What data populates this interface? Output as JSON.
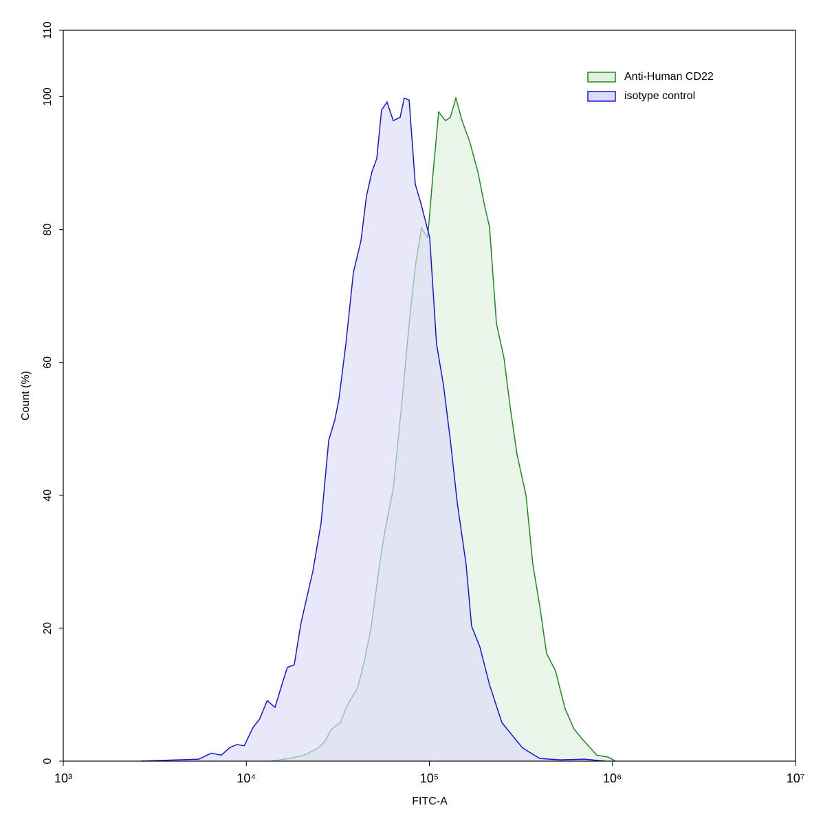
{
  "chart_data": {
    "type": "histogram-overlay",
    "x_label": "FITC-A",
    "y_label": "Count  (%)",
    "xscale": "log",
    "xlim": [
      1000,
      10000000
    ],
    "xticks": [
      {
        "value": 1000,
        "label": "10³"
      },
      {
        "value": 10000,
        "label": "10⁴"
      },
      {
        "value": 100000,
        "label": "10⁵"
      },
      {
        "value": 1000000,
        "label": "10⁶"
      },
      {
        "value": 10000000,
        "label": "10⁷"
      }
    ],
    "ylim": [
      0,
      110
    ],
    "yticks": [
      0,
      20,
      40,
      60,
      80,
      100,
      110
    ],
    "legend": "upper right",
    "series": [
      {
        "name": "Anti-Human CD22",
        "color": "#1a8a1a",
        "fill": "#dff0df",
        "x": [
          13740,
          17060,
          20280,
          22130,
          24540,
          26740,
          29160,
          32640,
          35570,
          40530,
          44190,
          48170,
          53430,
          57270,
          63500,
          71070,
          78830,
          84560,
          90570,
          97900,
          104900,
          112400,
          122500,
          130200,
          139600,
          150800,
          165800,
          184100,
          200600,
          213100,
          232400,
          255500,
          276000,
          301000,
          337200,
          367600,
          400500,
          436700,
          488500,
          551300,
          617400,
          690400,
          821600,
          951000,
          1038000
        ],
        "values": [
          0,
          0.4,
          0.8,
          1.3,
          1.9,
          2.9,
          4.8,
          5.8,
          8.4,
          11.0,
          15.1,
          20.3,
          29.6,
          34.8,
          41.0,
          54.5,
          67.9,
          75.2,
          80.2,
          78.8,
          88.7,
          97.7,
          96.4,
          96.9,
          99.8,
          96.4,
          93.3,
          88.7,
          83.5,
          80.4,
          65.9,
          60.7,
          53.4,
          46.2,
          40.0,
          29.6,
          23.4,
          16.2,
          13.6,
          7.9,
          4.8,
          3.2,
          0.9,
          0.6,
          0
        ]
      },
      {
        "name": "isotype control",
        "color": "#1414dc",
        "fill": "#dcdcf8",
        "x": [
          2660,
          4270,
          5500,
          6440,
          7300,
          8180,
          8920,
          9730,
          10900,
          11800,
          13000,
          14350,
          15640,
          16750,
          18270,
          19900,
          23100,
          25600,
          28200,
          30470,
          32070,
          34970,
          38470,
          42300,
          45290,
          48550,
          51600,
          54800,
          58700,
          63500,
          69200,
          72900,
          77500,
          83800,
          89800,
          100400,
          109400,
          119400,
          130200,
          142000,
          158700,
          170100,
          188700,
          213100,
          248900,
          283300,
          322500,
          400500,
          519800,
          703500,
          912000
        ],
        "values": [
          0,
          0.2,
          0.3,
          1.2,
          0.9,
          2.1,
          2.5,
          2.3,
          5.1,
          6.3,
          9.1,
          8.1,
          11.5,
          14.1,
          14.5,
          20.8,
          28.6,
          35.8,
          48.3,
          51.4,
          54.5,
          62.8,
          73.6,
          78.3,
          85.0,
          88.7,
          90.7,
          98.0,
          99.2,
          96.4,
          96.9,
          99.8,
          99.5,
          86.8,
          84.0,
          78.8,
          62.8,
          56.6,
          48.3,
          38.9,
          29.6,
          20.3,
          17.2,
          11.5,
          5.8,
          3.9,
          2.0,
          0.4,
          0.2,
          0.3,
          0
        ]
      }
    ]
  }
}
